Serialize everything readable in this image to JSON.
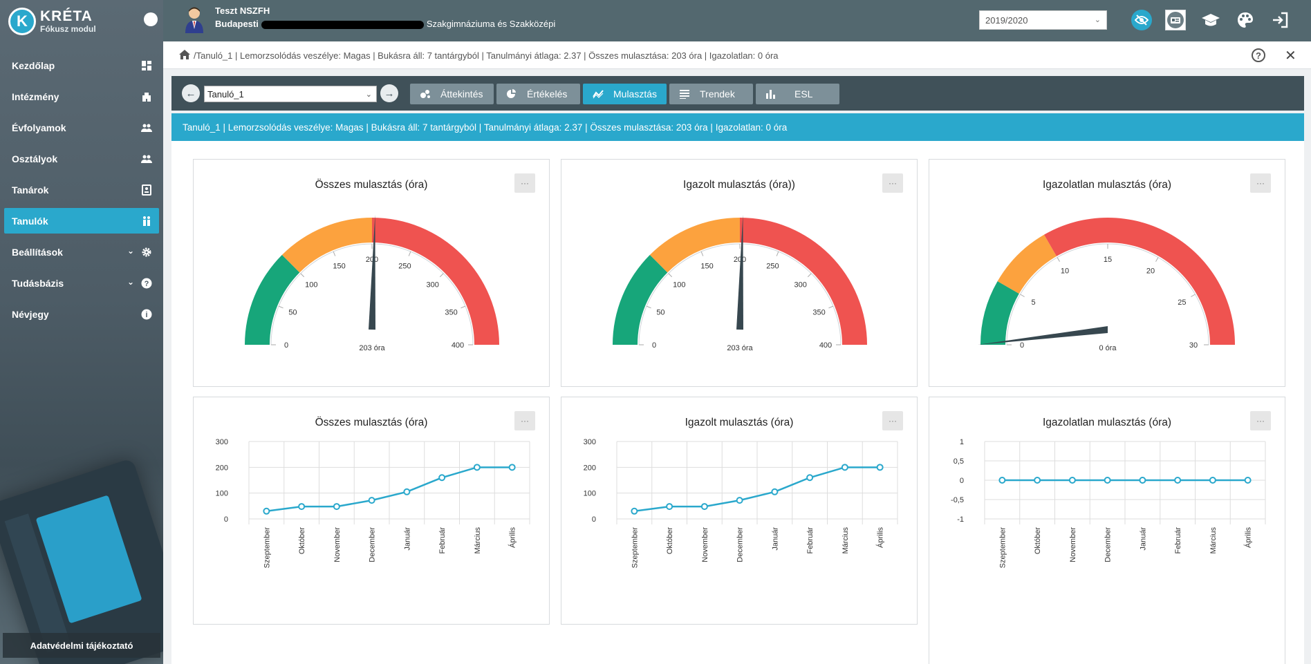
{
  "app": {
    "title": "KRÉTA",
    "subtitle": "Fókusz modul"
  },
  "sidebar": {
    "items": [
      {
        "label": "Kezdőlap",
        "icon": "dashboard-icon"
      },
      {
        "label": "Intézmény",
        "icon": "building-icon"
      },
      {
        "label": "Évfolyamok",
        "icon": "group-icon"
      },
      {
        "label": "Osztályok",
        "icon": "group-icon"
      },
      {
        "label": "Tanárok",
        "icon": "id-card-icon"
      },
      {
        "label": "Tanulók",
        "icon": "students-icon",
        "active": true
      },
      {
        "label": "Beállítások",
        "icon": "gear-icon",
        "expandable": true
      },
      {
        "label": "Tudásbázis",
        "icon": "help-icon",
        "expandable": true
      },
      {
        "label": "Névjegy",
        "icon": "info-icon"
      }
    ],
    "privacy_label": "Adatvédelmi tájékoztató"
  },
  "header": {
    "user_name": "Teszt NSZFH",
    "school_prefix": "Budapesti",
    "school_suffix": "Szakgimnáziuma és Szakközépi",
    "year": "2019/2020"
  },
  "breadcrumb": {
    "text": "Tanuló_1 | Lemorzsolódás veszélye: Magas | Bukásra áll: 7 tantárgyból | Tanulmányi átlaga: 2.37 | Összes mulasztása: 203 óra | Igazolatlan: 0 óra"
  },
  "toolbar": {
    "student": "Tanuló_1",
    "tabs": [
      {
        "label": "Áttekintés",
        "icon": "bubbles-icon"
      },
      {
        "label": "Értékelés",
        "icon": "pie-icon"
      },
      {
        "label": "Mulasztás",
        "icon": "trend-icon",
        "active": true
      },
      {
        "label": "Trendek",
        "icon": "lines-icon"
      },
      {
        "label": "ESL",
        "icon": "bars-icon"
      }
    ]
  },
  "banner": {
    "text": "Tanuló_1 | Lemorzsolódás veszélye: Magas | Bukásra áll: 7 tantárgyból | Tanulmányi átlaga: 2.37 | Összes mulasztása: 203 óra | Igazolatlan: 0 óra"
  },
  "more_label": "···",
  "colors": {
    "accent": "#2aa8cc",
    "green": "#17a67a",
    "orange": "#fca23e",
    "red": "#ef5350",
    "needle": "#37474f"
  },
  "gauges": [
    {
      "title": "Összes mulasztás (óra)",
      "min": 0,
      "max": 400,
      "ticks": [
        0,
        50,
        100,
        150,
        200,
        250,
        300,
        350,
        400
      ],
      "value": 203,
      "value_label": "203 óra",
      "bands": [
        [
          0,
          100,
          "green"
        ],
        [
          100,
          200,
          "orange"
        ],
        [
          200,
          400,
          "red"
        ]
      ]
    },
    {
      "title": "Igazolt mulasztás (óra))",
      "min": 0,
      "max": 400,
      "ticks": [
        0,
        50,
        100,
        150,
        200,
        250,
        300,
        350,
        400
      ],
      "value": 203,
      "value_label": "203 óra",
      "bands": [
        [
          0,
          100,
          "green"
        ],
        [
          100,
          200,
          "orange"
        ],
        [
          200,
          400,
          "red"
        ]
      ]
    },
    {
      "title": "Igazolatlan mulasztás (óra)",
      "min": 0,
      "max": 30,
      "ticks": [
        0,
        5,
        10,
        15,
        20,
        25,
        30
      ],
      "value": 0,
      "value_label": "0 óra",
      "bands": [
        [
          0,
          5,
          "green"
        ],
        [
          5,
          10,
          "orange"
        ],
        [
          10,
          30,
          "red"
        ]
      ]
    }
  ],
  "chart_data": [
    {
      "type": "line",
      "title": "Összes mulasztás (óra)",
      "categories": [
        "Szeptember",
        "Október",
        "November",
        "December",
        "Január",
        "Február",
        "Március",
        "Április"
      ],
      "values": [
        30,
        48,
        48,
        72,
        105,
        160,
        200,
        200
      ],
      "ylim": [
        0,
        300
      ],
      "yticks": [
        "0",
        "100",
        "200",
        "300"
      ],
      "grid": true
    },
    {
      "type": "line",
      "title": "Igazolt mulasztás (óra)",
      "categories": [
        "Szeptember",
        "Október",
        "November",
        "December",
        "Január",
        "Február",
        "Március",
        "Április"
      ],
      "values": [
        30,
        48,
        48,
        72,
        105,
        160,
        200,
        200
      ],
      "ylim": [
        0,
        300
      ],
      "yticks": [
        "0",
        "100",
        "200",
        "300"
      ],
      "grid": true
    },
    {
      "type": "line",
      "title": "Igazolatlan mulasztás (óra)",
      "categories": [
        "Szeptember",
        "Október",
        "November",
        "December",
        "Január",
        "Február",
        "Március",
        "Április"
      ],
      "values": [
        0,
        0,
        0,
        0,
        0,
        0,
        0,
        0
      ],
      "ylim": [
        -1,
        1
      ],
      "yticks": [
        "-1",
        "-0,5",
        "0",
        "0,5",
        "1"
      ],
      "grid": true
    }
  ]
}
